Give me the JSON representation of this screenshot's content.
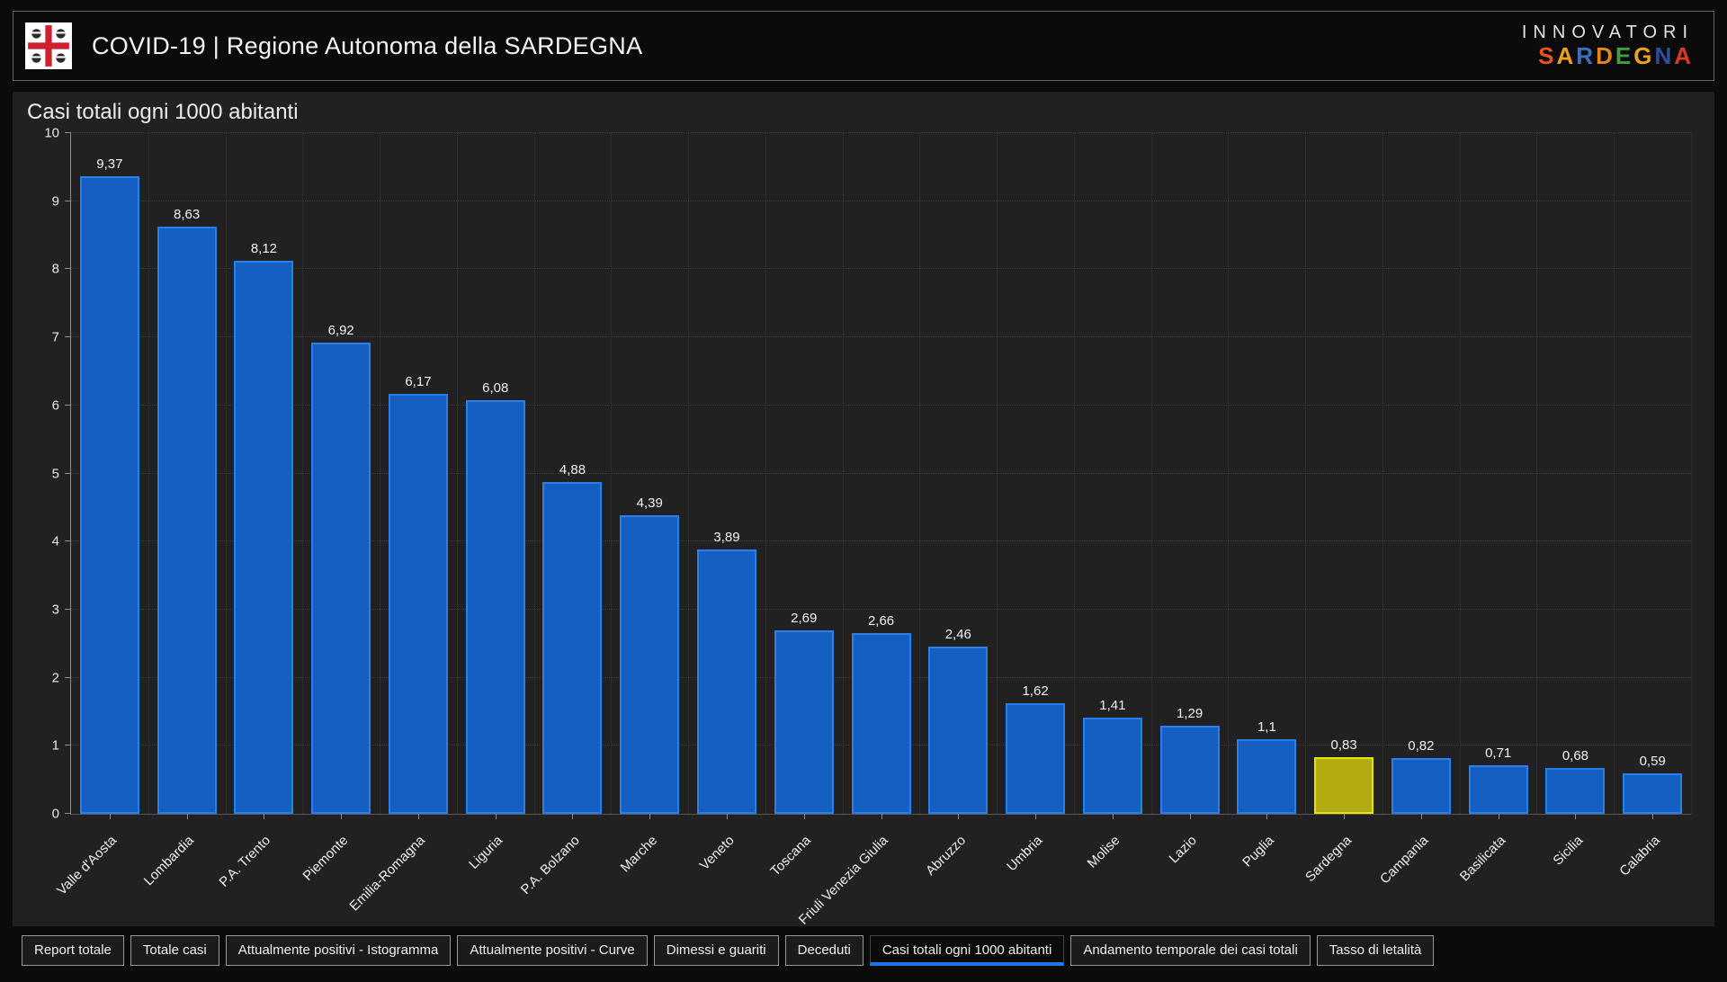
{
  "header": {
    "title": "COVID-19 | Regione Autonoma della SARDEGNA",
    "brand": {
      "line1": "INNOVATORI",
      "line2_letters": [
        {
          "ch": "S",
          "color": "#e8541e"
        },
        {
          "ch": "A",
          "color": "#f0a11c"
        },
        {
          "ch": "R",
          "color": "#3a6fc4"
        },
        {
          "ch": "D",
          "color": "#e8861e"
        },
        {
          "ch": "E",
          "color": "#3f9e42"
        },
        {
          "ch": "G",
          "color": "#f0a11c"
        },
        {
          "ch": "N",
          "color": "#2a4f9e"
        },
        {
          "ch": "A",
          "color": "#d93a28"
        }
      ]
    }
  },
  "chart_data": {
    "type": "bar",
    "title": "Casi totali ogni 1000 abitanti",
    "categories": [
      "Valle d'Aosta",
      "Lombardia",
      "P.A. Trento",
      "Piemonte",
      "Emilia-Romagna",
      "Liguria",
      "P.A. Bolzano",
      "Marche",
      "Veneto",
      "Toscana",
      "Friuli Venezia Giulia",
      "Abruzzo",
      "Umbria",
      "Molise",
      "Lazio",
      "Puglia",
      "Sardegna",
      "Campania",
      "Basilicata",
      "Sicilia",
      "Calabria"
    ],
    "values": [
      9.37,
      8.63,
      8.12,
      6.92,
      6.17,
      6.08,
      4.88,
      4.39,
      3.89,
      2.69,
      2.66,
      2.46,
      1.62,
      1.41,
      1.29,
      1.1,
      0.83,
      0.82,
      0.71,
      0.68,
      0.59
    ],
    "labels": [
      "9,37",
      "8,63",
      "8,12",
      "6,92",
      "6,17",
      "6,08",
      "4,88",
      "4,39",
      "3,89",
      "2,69",
      "2,66",
      "2,46",
      "1,62",
      "1,41",
      "1,29",
      "1,1",
      "0,83",
      "0,82",
      "0,71",
      "0,68",
      "0,59"
    ],
    "highlight_category": "Sardegna",
    "xlabel": "",
    "ylabel": "",
    "ylim": [
      0,
      10
    ],
    "ytick_step": 1,
    "grid": true,
    "legend": "none",
    "colors": {
      "bar_fill": "#155fc2",
      "bar_border": "#2a80e8",
      "highlight_fill": "#b3ab12",
      "highlight_border": "#e8e400"
    }
  },
  "tabs": [
    {
      "label": "Report totale",
      "active": false
    },
    {
      "label": "Totale casi",
      "active": false
    },
    {
      "label": "Attualmente positivi - Istogramma",
      "active": false
    },
    {
      "label": "Attualmente positivi - Curve",
      "active": false
    },
    {
      "label": "Dimessi e guariti",
      "active": false
    },
    {
      "label": "Deceduti",
      "active": false
    },
    {
      "label": "Casi totali ogni 1000 abitanti",
      "active": true
    },
    {
      "label": "Andamento temporale dei casi totali",
      "active": false
    },
    {
      "label": "Tasso di letalità",
      "active": false
    }
  ]
}
